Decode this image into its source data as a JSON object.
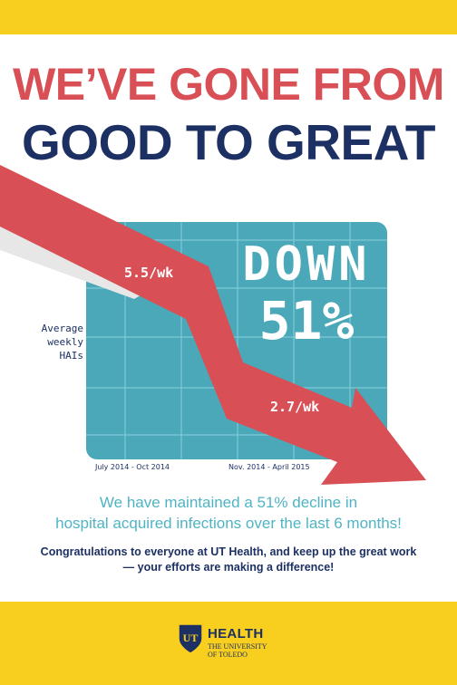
{
  "headline": {
    "line1": "WE’VE GONE FROM",
    "line2": "GOOD TO GREAT"
  },
  "chart": {
    "y_label_lines": [
      "Average",
      "weekly",
      "HAIs"
    ],
    "big_text_lines": [
      "DOWN",
      "51%"
    ],
    "rate_before": "5.5/wk",
    "rate_after": "2.7/wk",
    "x_labels": [
      "July 2014 - Oct 2014",
      "Nov. 2014 - April 2015"
    ]
  },
  "chart_data": {
    "type": "line",
    "categories": [
      "July 2014 - Oct 2014",
      "Nov. 2014 - April 2015"
    ],
    "values": [
      5.5,
      2.7
    ],
    "ylabel": "Average weekly HAIs",
    "grid": true
  },
  "message": {
    "line1": "We have maintained a 51% decline in",
    "line2": "hospital acquired infections over the last 6 months!"
  },
  "congrats": {
    "line1": "Congratulations to everyone at UT Health, and keep up the great work",
    "line2": "— your efforts are making a difference!"
  },
  "logo": {
    "seal_text": "UT",
    "word": "HEALTH",
    "sub1": "THE UNIVERSITY",
    "sub2": "OF TOLEDO"
  },
  "colors": {
    "yellow": "#f8cf1e",
    "red": "#d85056",
    "navy": "#1d3063",
    "teal_panel": "#4aa8b8",
    "teal_text": "#4fb4c4"
  }
}
